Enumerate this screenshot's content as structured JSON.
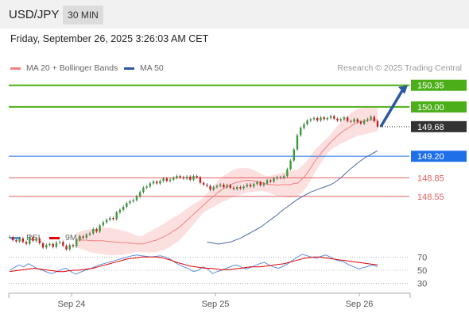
{
  "header": {
    "symbol": "USD/JPY",
    "timeframe": "30 MIN"
  },
  "datetime": "Friday, September 26, 2025 3:26:03 AM CET",
  "copyright": "Research © 2025 Trading Central",
  "legend": [
    {
      "label": "MA 20 + Bollinger Bands",
      "color": "#f08080"
    },
    {
      "label": "MA 50",
      "color": "#2c5aa0"
    }
  ],
  "rsi_legend": [
    {
      "label": "RSI",
      "color": "#5b8ee6"
    },
    {
      "label": "9MA",
      "color": "#e00000"
    }
  ],
  "colors": {
    "resistance": "#4caf1a",
    "pivot": "#1f6fe8",
    "support": "#e06060",
    "last": "#333333",
    "arrow": "#2c5aa0"
  },
  "chart_data": {
    "type": "candlestick",
    "y_range": [
      148.2,
      150.5
    ],
    "x_ticks": [
      "Sep 24",
      "Sep 25",
      "Sep 26"
    ],
    "levels": [
      {
        "value": 150.35,
        "label": "150.35",
        "kind": "resistance"
      },
      {
        "value": 150.0,
        "label": "150.00",
        "kind": "resistance"
      },
      {
        "value": 149.68,
        "label": "149.68",
        "kind": "last"
      },
      {
        "value": 149.2,
        "label": "149.20",
        "kind": "pivot"
      },
      {
        "value": 148.85,
        "label": "148.85",
        "kind": "support"
      },
      {
        "value": 148.55,
        "label": "148.55",
        "kind": "support"
      }
    ],
    "close": [
      147.89,
      147.84,
      147.82,
      147.87,
      147.81,
      147.78,
      147.89,
      147.83,
      147.86,
      147.79,
      147.72,
      147.76,
      147.78,
      147.73,
      147.8,
      147.81,
      147.75,
      147.69,
      147.76,
      147.74,
      147.84,
      147.9,
      147.88,
      147.93,
      147.95,
      148.02,
      147.98,
      148.08,
      148.13,
      148.17,
      148.2,
      148.18,
      148.29,
      148.33,
      148.38,
      148.44,
      148.47,
      148.49,
      148.55,
      148.62,
      148.69,
      148.71,
      148.76,
      148.79,
      148.76,
      148.8,
      148.84,
      148.8,
      148.82,
      148.85,
      148.88,
      148.86,
      148.84,
      148.87,
      148.82,
      148.88,
      148.86,
      148.77,
      148.74,
      148.72,
      148.66,
      148.7,
      148.72,
      148.74,
      148.7,
      148.73,
      148.69,
      148.67,
      148.7,
      148.68,
      148.71,
      148.74,
      148.71,
      148.75,
      148.78,
      148.73,
      148.76,
      148.81,
      148.79,
      148.84,
      148.86,
      148.85,
      148.88,
      148.99,
      149.13,
      149.31,
      149.54,
      149.66,
      149.72,
      149.78,
      149.8,
      149.82,
      149.78,
      149.83,
      149.8,
      149.82,
      149.85,
      149.81,
      149.78,
      149.8,
      149.83,
      149.77,
      149.76,
      149.8,
      149.76,
      149.73,
      149.78,
      149.8,
      149.84,
      149.77,
      149.68
    ],
    "ma20": [
      147.84,
      147.84,
      147.84,
      147.84,
      147.83,
      147.83,
      147.83,
      147.83,
      147.83,
      147.82,
      147.82,
      147.81,
      147.81,
      147.8,
      147.8,
      147.8,
      147.79,
      147.79,
      147.78,
      147.78,
      147.78,
      147.8,
      147.81,
      147.83,
      147.84,
      147.87,
      147.89,
      147.92,
      147.95,
      147.99,
      148.02,
      148.06,
      148.11,
      148.16,
      148.21,
      148.26,
      148.31,
      148.36,
      148.41,
      148.46,
      148.51,
      148.55,
      148.6,
      148.64,
      148.68,
      148.7,
      148.74,
      148.76,
      148.78,
      148.79,
      148.8,
      148.81,
      148.81,
      148.8,
      148.79,
      148.78,
      148.76,
      148.75,
      148.74,
      148.74,
      148.73,
      148.74,
      148.74,
      148.74,
      148.74,
      148.76,
      148.76,
      148.81,
      148.86,
      148.93,
      149.01,
      149.1,
      149.17,
      149.24,
      149.31,
      149.37,
      149.43,
      149.48,
      149.53,
      149.58,
      149.62,
      149.65,
      149.69,
      149.72,
      149.75,
      149.76,
      149.77,
      149.78,
      149.79,
      149.79,
      149.79
    ],
    "ma50": [
      147.81,
      147.8,
      147.79,
      147.78,
      147.78,
      147.79,
      147.8,
      147.81,
      147.83,
      147.85,
      147.87,
      147.9,
      147.93,
      147.96,
      147.99,
      148.02,
      148.05,
      148.09,
      148.13,
      148.17,
      148.21,
      148.25,
      148.3,
      148.34,
      148.38,
      148.42,
      148.46,
      148.5,
      148.53,
      148.56,
      148.59,
      148.62,
      148.64,
      148.66,
      148.68,
      148.7,
      148.72,
      148.74,
      148.77,
      148.81,
      148.85,
      148.9,
      148.95,
      149.0,
      149.04,
      149.09,
      149.13,
      149.17,
      149.2,
      149.23,
      149.26,
      149.29
    ],
    "rsi": [
      50,
      54,
      58,
      55,
      60,
      56,
      52,
      50,
      47,
      45,
      48,
      51,
      53,
      48,
      44,
      47,
      50,
      52,
      55,
      58,
      60,
      62,
      64,
      66,
      68,
      70,
      72,
      73,
      72,
      71,
      70,
      71,
      72,
      70,
      67,
      62,
      58,
      55,
      52,
      48,
      50,
      55,
      52,
      45,
      48,
      50,
      53,
      56,
      58,
      55,
      52,
      54,
      57,
      60,
      62,
      58,
      55,
      53,
      56,
      60,
      65,
      70,
      74,
      72,
      70,
      68,
      71,
      73,
      70,
      66,
      64,
      62,
      58,
      55,
      52,
      54,
      56,
      58,
      55
    ],
    "rsi_ma": [
      48,
      49,
      50,
      51,
      52,
      53,
      52,
      51,
      50,
      49,
      48,
      48,
      49,
      50,
      50,
      51,
      52,
      53,
      55,
      57,
      59,
      61,
      63,
      65,
      67,
      68,
      69,
      70,
      70,
      70,
      70,
      69,
      67,
      65,
      62,
      60,
      58,
      56,
      55,
      54,
      53,
      53,
      52,
      51,
      51,
      51,
      52,
      53,
      54,
      55,
      55,
      55,
      56,
      57,
      58,
      59,
      60,
      62,
      64,
      66,
      68,
      69,
      70,
      70,
      69,
      68,
      67,
      66,
      65,
      64,
      63,
      62,
      61,
      60,
      59,
      58
    ],
    "rsi_levels": [
      70,
      50,
      30
    ]
  }
}
